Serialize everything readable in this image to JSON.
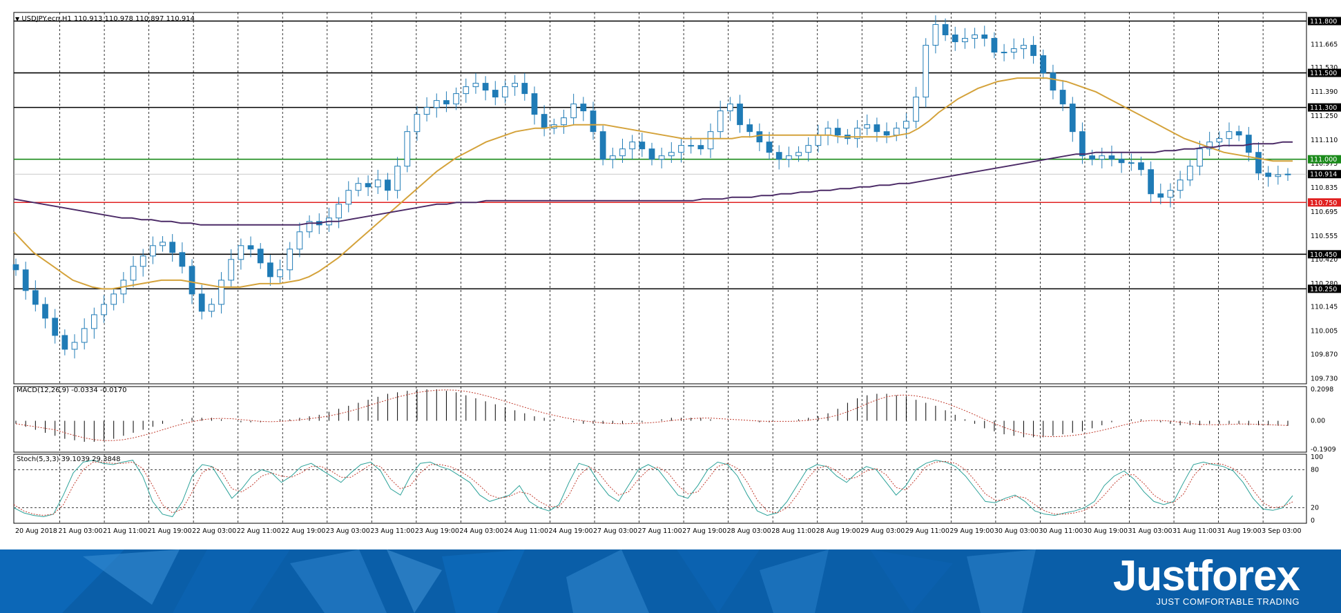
{
  "window": {
    "symbol_info": "USDJPY.ecn,H1  110.913 110.978 110.897 110.914"
  },
  "indicators": {
    "macd_label": "MACD(12,26,9) -0.0334 -0.0170",
    "stoch_label": "Stoch(5,3,3) 39.1039 29.3848"
  },
  "branding": {
    "logo": "Justforex",
    "tagline": "JUST COMFORTABLE TRADING"
  },
  "colors": {
    "background": "#ffffff",
    "bull_candle": "#1f7bb6",
    "bear_candle": "#1f7bb6",
    "ma_fast": "#d4a23a",
    "ma_slow": "#4b2a66",
    "support_line": "#e02020",
    "pivot_line": "#1a8a1a",
    "level_line": "#000000",
    "macd_signal": "#c0392b",
    "stoch_main": "#2aa198",
    "stoch_signal": "#c0392b",
    "banner": "#0a5ea8"
  },
  "chart_data": [
    {
      "type": "line",
      "panel": "price",
      "title": "USDJPY.ecn,H1",
      "y_ticks": [
        "111.800",
        "111.665",
        "111.530",
        "111.390",
        "111.250",
        "111.110",
        "110.975",
        "110.835",
        "110.695",
        "110.555",
        "110.420",
        "110.280",
        "110.145",
        "110.005",
        "109.870",
        "109.730"
      ],
      "ylim": [
        109.7,
        111.85
      ],
      "x_ticks": [
        "20 Aug 2018",
        "21 Aug 03:00",
        "21 Aug 11:00",
        "21 Aug 19:00",
        "22 Aug 03:00",
        "22 Aug 11:00",
        "22 Aug 19:00",
        "23 Aug 03:00",
        "23 Aug 11:00",
        "23 Aug 19:00",
        "24 Aug 03:00",
        "24 Aug 11:00",
        "24 Aug 19:00",
        "27 Aug 03:00",
        "27 Aug 11:00",
        "27 Aug 19:00",
        "28 Aug 03:00",
        "28 Aug 11:00",
        "28 Aug 19:00",
        "29 Aug 03:00",
        "29 Aug 11:00",
        "29 Aug 19:00",
        "30 Aug 03:00",
        "30 Aug 11:00",
        "30 Aug 19:00",
        "31 Aug 03:00",
        "31 Aug 11:00",
        "31 Aug 19:00",
        "3 Sep 03:00"
      ],
      "horizontal_levels": [
        {
          "value": 111.8,
          "label": "111.800",
          "color": "#000000"
        },
        {
          "value": 111.5,
          "label": "111.500",
          "color": "#000000"
        },
        {
          "value": 111.3,
          "label": "111.300",
          "color": "#000000"
        },
        {
          "value": 111.0,
          "label": "111.000",
          "color": "#1a8a1a"
        },
        {
          "value": 110.75,
          "label": "110.750",
          "color": "#e02020"
        },
        {
          "value": 110.45,
          "label": "110.450",
          "color": "#000000"
        },
        {
          "value": 110.25,
          "label": "110.250",
          "color": "#000000"
        }
      ],
      "current_price": {
        "value": 110.914,
        "label": "110.914"
      },
      "close_series": [
        110.36,
        110.24,
        110.16,
        110.08,
        109.98,
        109.9,
        109.94,
        110.02,
        110.1,
        110.16,
        110.22,
        110.3,
        110.38,
        110.44,
        110.5,
        110.52,
        110.46,
        110.38,
        110.22,
        110.12,
        110.16,
        110.3,
        110.42,
        110.5,
        110.48,
        110.4,
        110.32,
        110.36,
        110.48,
        110.58,
        110.64,
        110.62,
        110.66,
        110.74,
        110.82,
        110.86,
        110.84,
        110.88,
        110.82,
        110.96,
        111.16,
        111.26,
        111.3,
        111.34,
        111.32,
        111.38,
        111.42,
        111.44,
        111.4,
        111.36,
        111.42,
        111.44,
        111.38,
        111.26,
        111.18,
        111.2,
        111.24,
        111.32,
        111.28,
        111.16,
        111.0,
        111.02,
        111.06,
        111.1,
        111.06,
        111.0,
        111.02,
        111.04,
        111.08,
        111.08,
        111.06,
        111.16,
        111.28,
        111.32,
        111.2,
        111.16,
        111.1,
        111.04,
        111.0,
        111.02,
        111.04,
        111.08,
        111.14,
        111.18,
        111.14,
        111.12,
        111.18,
        111.2,
        111.16,
        111.14,
        111.18,
        111.22,
        111.36,
        111.66,
        111.78,
        111.72,
        111.68,
        111.7,
        111.72,
        111.7,
        111.62,
        111.62,
        111.64,
        111.66,
        111.6,
        111.5,
        111.4,
        111.32,
        111.16,
        111.02,
        111.0,
        111.02,
        111.0,
        110.98,
        110.98,
        110.94,
        110.8,
        110.78,
        110.82,
        110.88,
        110.96,
        111.06,
        111.1,
        111.12,
        111.16,
        111.14,
        111.04,
        110.92,
        110.9,
        110.91,
        110.914
      ],
      "series": [
        {
          "name": "MA fast",
          "values": [
            110.58,
            110.52,
            110.46,
            110.42,
            110.38,
            110.34,
            110.3,
            110.28,
            110.26,
            110.25,
            110.25,
            110.26,
            110.27,
            110.28,
            110.29,
            110.3,
            110.3,
            110.3,
            110.29,
            110.28,
            110.27,
            110.26,
            110.26,
            110.26,
            110.27,
            110.28,
            110.28,
            110.28,
            110.29,
            110.3,
            110.32,
            110.35,
            110.39,
            110.43,
            110.48,
            110.53,
            110.58,
            110.63,
            110.68,
            110.73,
            110.78,
            110.83,
            110.88,
            110.93,
            110.97,
            111.01,
            111.04,
            111.07,
            111.1,
            111.12,
            111.14,
            111.16,
            111.17,
            111.18,
            111.18,
            111.19,
            111.19,
            111.2,
            111.2,
            111.2,
            111.2,
            111.19,
            111.18,
            111.17,
            111.16,
            111.15,
            111.14,
            111.13,
            111.12,
            111.12,
            111.12,
            111.12,
            111.12,
            111.12,
            111.13,
            111.13,
            111.14,
            111.14,
            111.14,
            111.14,
            111.14,
            111.14,
            111.14,
            111.14,
            111.13,
            111.13,
            111.13,
            111.13,
            111.13,
            111.13,
            111.14,
            111.15,
            111.18,
            111.22,
            111.27,
            111.31,
            111.35,
            111.38,
            111.41,
            111.43,
            111.45,
            111.46,
            111.47,
            111.47,
            111.47,
            111.47,
            111.46,
            111.45,
            111.43,
            111.41,
            111.39,
            111.36,
            111.33,
            111.3,
            111.27,
            111.24,
            111.21,
            111.18,
            111.15,
            111.12,
            111.1,
            111.08,
            111.06,
            111.04,
            111.03,
            111.02,
            111.01,
            111.0,
            110.99,
            110.99,
            110.99
          ]
        },
        {
          "name": "MA slow",
          "values": [
            110.77,
            110.76,
            110.75,
            110.74,
            110.73,
            110.72,
            110.71,
            110.7,
            110.69,
            110.68,
            110.67,
            110.66,
            110.66,
            110.65,
            110.65,
            110.64,
            110.64,
            110.63,
            110.63,
            110.62,
            110.62,
            110.62,
            110.62,
            110.62,
            110.62,
            110.62,
            110.62,
            110.62,
            110.62,
            110.62,
            110.63,
            110.63,
            110.64,
            110.64,
            110.65,
            110.66,
            110.67,
            110.68,
            110.69,
            110.7,
            110.71,
            110.72,
            110.73,
            110.74,
            110.74,
            110.75,
            110.75,
            110.75,
            110.76,
            110.76,
            110.76,
            110.76,
            110.76,
            110.76,
            110.76,
            110.76,
            110.76,
            110.76,
            110.76,
            110.76,
            110.76,
            110.76,
            110.76,
            110.76,
            110.76,
            110.76,
            110.76,
            110.76,
            110.76,
            110.76,
            110.77,
            110.77,
            110.77,
            110.78,
            110.78,
            110.78,
            110.79,
            110.79,
            110.8,
            110.8,
            110.81,
            110.81,
            110.82,
            110.82,
            110.83,
            110.83,
            110.84,
            110.84,
            110.85,
            110.85,
            110.86,
            110.86,
            110.87,
            110.88,
            110.89,
            110.9,
            110.91,
            110.92,
            110.93,
            110.94,
            110.95,
            110.96,
            110.97,
            110.98,
            110.99,
            111.0,
            111.01,
            111.02,
            111.03,
            111.03,
            111.04,
            111.04,
            111.04,
            111.04,
            111.04,
            111.04,
            111.04,
            111.05,
            111.05,
            111.06,
            111.06,
            111.07,
            111.07,
            111.08,
            111.08,
            111.08,
            111.09,
            111.09,
            111.09,
            111.1,
            111.1
          ]
        }
      ]
    },
    {
      "type": "bar",
      "panel": "macd",
      "title": "MACD(12,26,9) -0.0334 -0.0170",
      "y_ticks": [
        "0.2098",
        "0.00",
        "-0.1909"
      ],
      "ylim": [
        -0.1909,
        0.2098
      ],
      "histogram": [
        -0.02,
        -0.04,
        -0.06,
        -0.08,
        -0.1,
        -0.12,
        -0.13,
        -0.14,
        -0.14,
        -0.13,
        -0.12,
        -0.1,
        -0.08,
        -0.06,
        -0.04,
        -0.02,
        0.0,
        0.01,
        0.02,
        0.02,
        0.02,
        0.01,
        0.0,
        -0.01,
        -0.01,
        -0.01,
        0.0,
        0.01,
        0.01,
        0.02,
        0.03,
        0.04,
        0.06,
        0.08,
        0.1,
        0.12,
        0.14,
        0.16,
        0.18,
        0.19,
        0.2,
        0.21,
        0.21,
        0.21,
        0.2,
        0.19,
        0.17,
        0.15,
        0.13,
        0.11,
        0.09,
        0.07,
        0.05,
        0.03,
        0.02,
        0.01,
        0.0,
        -0.01,
        -0.02,
        -0.02,
        -0.02,
        -0.02,
        -0.02,
        -0.01,
        -0.01,
        0.0,
        0.01,
        0.02,
        0.02,
        0.02,
        0.02,
        0.01,
        0.0,
        0.0,
        0.0,
        0.0,
        -0.01,
        -0.01,
        0.0,
        0.0,
        0.01,
        0.02,
        0.03,
        0.05,
        0.08,
        0.12,
        0.15,
        0.17,
        0.18,
        0.18,
        0.17,
        0.16,
        0.14,
        0.12,
        0.1,
        0.07,
        0.04,
        0.01,
        -0.02,
        -0.05,
        -0.07,
        -0.09,
        -0.1,
        -0.11,
        -0.11,
        -0.11,
        -0.1,
        -0.09,
        -0.08,
        -0.07,
        -0.05,
        -0.03,
        -0.01,
        0.0,
        0.01,
        0.01,
        0.0,
        -0.01,
        -0.02,
        -0.03,
        -0.03,
        -0.03,
        -0.02,
        -0.02,
        -0.02,
        -0.02,
        -0.03,
        -0.03,
        -0.03,
        -0.033,
        -0.0334
      ]
    },
    {
      "type": "line",
      "panel": "stochastic",
      "title": "Stoch(5,3,3) 39.1039 29.3848",
      "y_ticks": [
        "100",
        "80",
        "20",
        "0"
      ],
      "ylim": [
        0,
        100
      ],
      "series": [
        {
          "name": "Stoch main",
          "values": [
            20,
            12,
            8,
            6,
            10,
            40,
            75,
            92,
            95,
            90,
            88,
            92,
            95,
            70,
            30,
            10,
            6,
            30,
            70,
            88,
            85,
            60,
            35,
            50,
            70,
            80,
            75,
            60,
            70,
            85,
            90,
            80,
            70,
            60,
            75,
            88,
            92,
            78,
            50,
            40,
            70,
            90,
            92,
            85,
            80,
            70,
            60,
            40,
            30,
            35,
            40,
            55,
            30,
            20,
            15,
            25,
            60,
            90,
            85,
            60,
            40,
            30,
            55,
            80,
            88,
            80,
            60,
            40,
            35,
            55,
            80,
            92,
            88,
            70,
            40,
            15,
            8,
            12,
            30,
            55,
            80,
            88,
            85,
            70,
            60,
            75,
            85,
            80,
            60,
            40,
            55,
            80,
            90,
            95,
            92,
            85,
            70,
            50,
            30,
            28,
            35,
            40,
            30,
            15,
            10,
            8,
            12,
            15,
            20,
            30,
            55,
            70,
            78,
            65,
            45,
            30,
            25,
            30,
            60,
            88,
            92,
            88,
            85,
            78,
            60,
            35,
            18,
            16,
            20,
            39.1
          ]
        },
        {
          "name": "Stoch signal",
          "values": [
            25,
            15,
            10,
            8,
            10,
            25,
            55,
            80,
            92,
            92,
            90,
            90,
            92,
            82,
            55,
            25,
            12,
            18,
            45,
            75,
            85,
            75,
            50,
            45,
            55,
            70,
            75,
            70,
            68,
            75,
            85,
            85,
            78,
            68,
            68,
            78,
            88,
            85,
            65,
            50,
            55,
            75,
            88,
            88,
            85,
            78,
            68,
            55,
            40,
            35,
            38,
            45,
            42,
            30,
            22,
            22,
            40,
            70,
            85,
            75,
            55,
            40,
            45,
            65,
            80,
            84,
            75,
            55,
            42,
            45,
            65,
            85,
            90,
            82,
            60,
            32,
            15,
            12,
            20,
            40,
            65,
            82,
            86,
            78,
            65,
            68,
            78,
            82,
            72,
            52,
            48,
            65,
            85,
            92,
            93,
            90,
            80,
            62,
            42,
            32,
            32,
            38,
            36,
            25,
            15,
            10,
            10,
            12,
            16,
            24,
            40,
            58,
            72,
            72,
            58,
            40,
            30,
            28,
            42,
            70,
            88,
            90,
            88,
            82,
            70,
            48,
            28,
            20,
            22,
            29.4
          ]
        }
      ]
    }
  ]
}
